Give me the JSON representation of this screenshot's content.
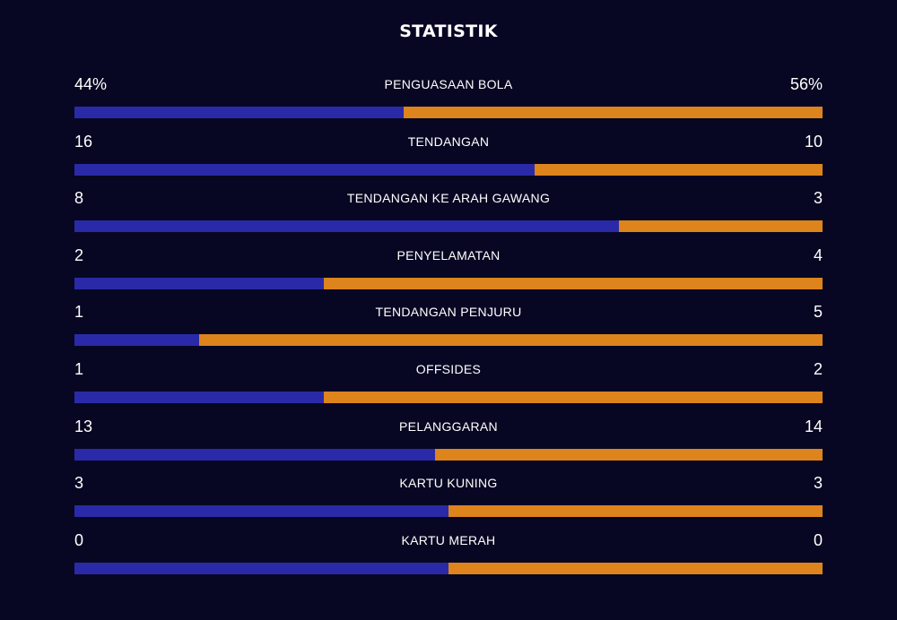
{
  "title": "STATISTIK",
  "colors": {
    "background": "#070723",
    "home": "#2a2aa8",
    "away": "#dd841c"
  },
  "chart_data": {
    "type": "bar",
    "title": "STATISTIK",
    "categories": [
      "PENGUASAAN BOLA",
      "TENDANGAN",
      "TENDANGAN KE ARAH GAWANG",
      "PENYELAMATAN",
      "TENDANGAN PENJURU",
      "OFFSIDES",
      "PELANGGARAN",
      "KARTU KUNING",
      "KARTU MERAH"
    ],
    "home_labels": [
      "44%",
      "16",
      "8",
      "2",
      "1",
      "1",
      "13",
      "3",
      "0"
    ],
    "away_labels": [
      "56%",
      "10",
      "3",
      "4",
      "5",
      "2",
      "14",
      "3",
      "0"
    ],
    "series": [
      {
        "values": [
          44,
          16,
          8,
          2,
          1,
          1,
          13,
          3,
          0
        ]
      },
      {
        "values": [
          56,
          10,
          3,
          4,
          5,
          2,
          14,
          3,
          0
        ]
      }
    ]
  }
}
